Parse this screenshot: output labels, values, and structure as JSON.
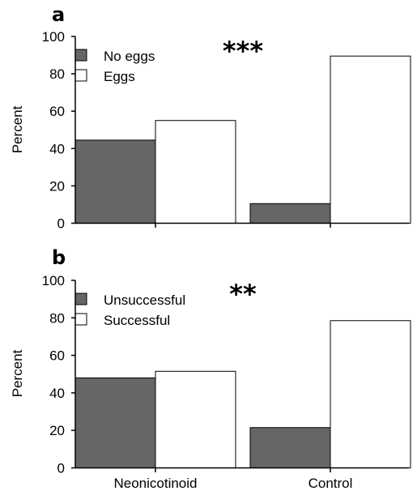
{
  "colors": {
    "dark_bar": "#666666",
    "light_bar": "#ffffff",
    "axis": "#000000"
  },
  "chart_data": [
    {
      "type": "bar",
      "panel": "a",
      "significance": "***",
      "categories": [
        "Neonicotinoid",
        "Control"
      ],
      "series": [
        {
          "name": "No eggs",
          "values": [
            44.5,
            10.5
          ]
        },
        {
          "name": "Eggs",
          "values": [
            55,
            89.5
          ]
        }
      ],
      "ylabel": "Percent",
      "ylim": [
        0,
        100
      ],
      "yticks": [
        "0",
        "20",
        "40",
        "60",
        "80",
        "100"
      ],
      "legend_position": "top-left",
      "grid": false
    },
    {
      "type": "bar",
      "panel": "b",
      "significance": "**",
      "categories": [
        "Neonicotinoid",
        "Control"
      ],
      "series": [
        {
          "name": "Unsuccessful",
          "values": [
            48,
            21.5
          ]
        },
        {
          "name": "Successful",
          "values": [
            51.5,
            78.5
          ]
        }
      ],
      "ylabel": "Percent",
      "ylim": [
        0,
        100
      ],
      "yticks": [
        "0",
        "20",
        "40",
        "60",
        "80",
        "100"
      ],
      "legend_position": "top-left",
      "grid": false
    }
  ]
}
